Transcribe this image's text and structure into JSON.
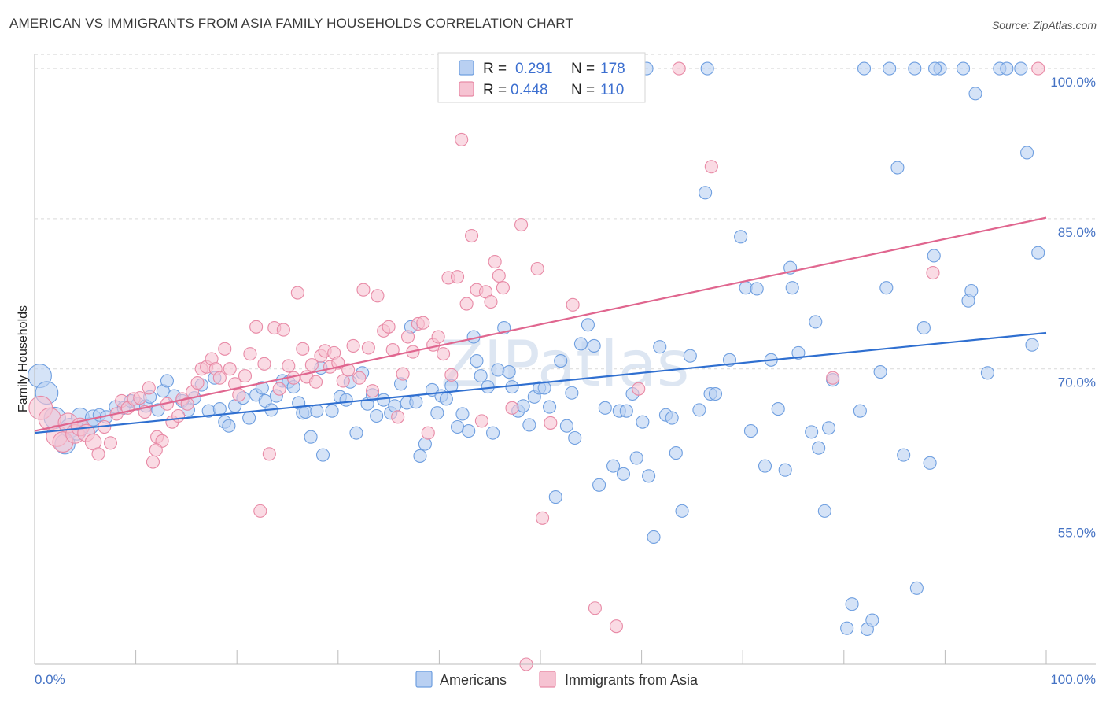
{
  "header": {
    "title": "AMERICAN VS IMMIGRANTS FROM ASIA FAMILY HOUSEHOLDS CORRELATION CHART",
    "source": "Source: ZipAtlas.com"
  },
  "legend": {
    "r_label": "R =",
    "n_label": "N =",
    "rows": [
      {
        "r": "0.291",
        "n": "178",
        "color": "#6f9fe0",
        "fill": "#b9d0f2"
      },
      {
        "r": "0.448",
        "n": "110",
        "color": "#e88aa6",
        "fill": "#f6c3d2"
      }
    ]
  },
  "bottom_legend": {
    "americans": "Americans",
    "immigrants": "Immigrants from Asia"
  },
  "watermark": "ZIPatlas",
  "chart_data": {
    "type": "scatter",
    "ylabel": "Family Households",
    "xlabel": "",
    "x_tick_labels": [
      "0.0%",
      "100.0%"
    ],
    "y_tick_labels": [
      "55.0%",
      "70.0%",
      "85.0%",
      "100.0%"
    ],
    "y_ticks": [
      55,
      70,
      85,
      100
    ],
    "xlim": [
      0,
      100
    ],
    "ylim": [
      40.5,
      101.5
    ],
    "grid": "horizontal dashed",
    "legend_position": "top-center",
    "series": [
      {
        "name": "Americans",
        "color": "#6f9fe0",
        "fill": "#b9d0f2",
        "trend": {
          "x": [
            0,
            100
          ],
          "y": [
            63.6,
            73.6
          ]
        },
        "points": [
          [
            0.5,
            69.3
          ],
          [
            1.2,
            67.6
          ],
          [
            2.0,
            65.1
          ],
          [
            3.0,
            62.5
          ],
          [
            3.5,
            64.1
          ],
          [
            4.2,
            63.8
          ],
          [
            4.5,
            65.2
          ],
          [
            5.5,
            64.3
          ],
          [
            5.8,
            65.1
          ],
          [
            6.4,
            65.4
          ],
          [
            7.1,
            65.2
          ],
          [
            8.0,
            66.2
          ],
          [
            8.8,
            66.1
          ],
          [
            9.5,
            66.8
          ],
          [
            10.2,
            66.5
          ],
          [
            11.0,
            66.3
          ],
          [
            11.4,
            67.2
          ],
          [
            12.2,
            65.9
          ],
          [
            12.7,
            67.8
          ],
          [
            13.1,
            68.8
          ],
          [
            13.8,
            67.3
          ],
          [
            14.6,
            66.8
          ],
          [
            15.2,
            65.9
          ],
          [
            15.8,
            67.1
          ],
          [
            16.5,
            68.4
          ],
          [
            17.2,
            65.8
          ],
          [
            17.8,
            69.1
          ],
          [
            18.3,
            66.0
          ],
          [
            18.8,
            64.7
          ],
          [
            19.2,
            64.3
          ],
          [
            19.8,
            66.3
          ],
          [
            20.6,
            67.1
          ],
          [
            21.2,
            65.1
          ],
          [
            21.9,
            67.4
          ],
          [
            22.5,
            68.1
          ],
          [
            22.8,
            66.8
          ],
          [
            23.4,
            65.9
          ],
          [
            23.9,
            67.3
          ],
          [
            24.5,
            68.8
          ],
          [
            25.1,
            68.7
          ],
          [
            25.6,
            68.2
          ],
          [
            26.1,
            66.6
          ],
          [
            26.5,
            65.6
          ],
          [
            26.8,
            65.7
          ],
          [
            27.3,
            63.2
          ],
          [
            27.9,
            65.8
          ],
          [
            28.3,
            70.1
          ],
          [
            28.5,
            61.4
          ],
          [
            29.4,
            65.8
          ],
          [
            30.2,
            67.2
          ],
          [
            30.8,
            66.9
          ],
          [
            31.2,
            68.7
          ],
          [
            31.8,
            63.6
          ],
          [
            32.4,
            69.6
          ],
          [
            32.9,
            66.5
          ],
          [
            33.4,
            67.4
          ],
          [
            33.8,
            65.3
          ],
          [
            34.5,
            66.9
          ],
          [
            35.2,
            65.6
          ],
          [
            35.6,
            66.3
          ],
          [
            36.2,
            68.5
          ],
          [
            36.8,
            66.6
          ],
          [
            37.2,
            74.2
          ],
          [
            37.7,
            66.7
          ],
          [
            38.1,
            61.3
          ],
          [
            38.6,
            62.5
          ],
          [
            39.3,
            67.9
          ],
          [
            39.8,
            65.6
          ],
          [
            40.2,
            67.3
          ],
          [
            40.7,
            67.0
          ],
          [
            41.2,
            68.3
          ],
          [
            41.8,
            64.2
          ],
          [
            42.3,
            65.5
          ],
          [
            42.9,
            63.8
          ],
          [
            43.4,
            73.2
          ],
          [
            43.7,
            70.8
          ],
          [
            44.1,
            69.3
          ],
          [
            44.8,
            68.2
          ],
          [
            45.3,
            63.6
          ],
          [
            45.8,
            69.9
          ],
          [
            46.4,
            74.1
          ],
          [
            46.9,
            69.7
          ],
          [
            47.2,
            68.2
          ],
          [
            47.8,
            65.8
          ],
          [
            48.3,
            66.3
          ],
          [
            48.9,
            64.4
          ],
          [
            49.4,
            67.2
          ],
          [
            49.9,
            68.1
          ],
          [
            50.4,
            68.1
          ],
          [
            50.9,
            66.2
          ],
          [
            51.5,
            57.2
          ],
          [
            52.0,
            70.8
          ],
          [
            52.6,
            64.3
          ],
          [
            53.1,
            67.6
          ],
          [
            53.4,
            63.1
          ],
          [
            54.0,
            72.5
          ],
          [
            54.7,
            74.4
          ],
          [
            55.3,
            72.3
          ],
          [
            55.8,
            58.4
          ],
          [
            56.4,
            66.1
          ],
          [
            57.2,
            60.3
          ],
          [
            57.8,
            65.8
          ],
          [
            58.2,
            59.5
          ],
          [
            58.5,
            65.8
          ],
          [
            59.1,
            67.5
          ],
          [
            59.5,
            61.1
          ],
          [
            60.1,
            64.7
          ],
          [
            60.7,
            59.3
          ],
          [
            61.2,
            53.2
          ],
          [
            61.8,
            72.2
          ],
          [
            62.4,
            65.4
          ],
          [
            63.0,
            65.1
          ],
          [
            63.4,
            61.6
          ],
          [
            64.0,
            55.8
          ],
          [
            64.8,
            71.3
          ],
          [
            65.7,
            65.9
          ],
          [
            66.3,
            87.6
          ],
          [
            66.8,
            67.5
          ],
          [
            67.3,
            67.5
          ],
          [
            68.7,
            70.9
          ],
          [
            69.8,
            83.2
          ],
          [
            70.3,
            78.1
          ],
          [
            70.8,
            63.8
          ],
          [
            71.4,
            78.0
          ],
          [
            72.2,
            60.3
          ],
          [
            72.8,
            70.9
          ],
          [
            73.5,
            66.0
          ],
          [
            74.2,
            59.9
          ],
          [
            74.7,
            80.1
          ],
          [
            74.9,
            78.1
          ],
          [
            75.5,
            71.6
          ],
          [
            76.8,
            63.7
          ],
          [
            77.2,
            74.7
          ],
          [
            77.5,
            62.1
          ],
          [
            78.1,
            55.8
          ],
          [
            78.5,
            64.1
          ],
          [
            78.9,
            68.9
          ],
          [
            80.3,
            44.1
          ],
          [
            80.8,
            46.5
          ],
          [
            81.6,
            65.8
          ],
          [
            82.3,
            44.0
          ],
          [
            82.8,
            44.9
          ],
          [
            83.6,
            69.7
          ],
          [
            84.2,
            78.1
          ],
          [
            85.3,
            90.1
          ],
          [
            85.9,
            61.4
          ],
          [
            87.2,
            48.1
          ],
          [
            87.9,
            74.1
          ],
          [
            88.5,
            60.6
          ],
          [
            88.9,
            81.3
          ],
          [
            89.5,
            100.0
          ],
          [
            91.8,
            100.0
          ],
          [
            92.3,
            76.8
          ],
          [
            92.6,
            77.8
          ],
          [
            93.0,
            97.5
          ],
          [
            94.2,
            69.6
          ],
          [
            95.4,
            100.0
          ],
          [
            96.1,
            100.0
          ],
          [
            97.5,
            100.0
          ],
          [
            98.1,
            91.6
          ],
          [
            98.6,
            72.4
          ],
          [
            99.2,
            81.6
          ],
          [
            82.0,
            100.0
          ],
          [
            84.5,
            100.0
          ],
          [
            87.0,
            100.0
          ],
          [
            89.0,
            100.0
          ],
          [
            66.5,
            100.0
          ],
          [
            60.5,
            100.0
          ]
        ]
      },
      {
        "name": "Immigrants from Asia",
        "color": "#e88aa6",
        "fill": "#f6c3d2",
        "trend": {
          "x": [
            0,
            100
          ],
          "y": [
            63.8,
            85.1
          ]
        },
        "points": [
          [
            0.6,
            66.1
          ],
          [
            1.5,
            65.0
          ],
          [
            2.2,
            63.3
          ],
          [
            2.8,
            62.7
          ],
          [
            3.3,
            64.6
          ],
          [
            4.0,
            63.5
          ],
          [
            4.5,
            64.2
          ],
          [
            5.1,
            63.6
          ],
          [
            5.8,
            62.7
          ],
          [
            6.3,
            61.5
          ],
          [
            6.9,
            64.2
          ],
          [
            7.5,
            62.6
          ],
          [
            8.1,
            65.5
          ],
          [
            8.6,
            66.8
          ],
          [
            9.2,
            66.1
          ],
          [
            9.8,
            67.0
          ],
          [
            10.4,
            67.1
          ],
          [
            10.9,
            65.7
          ],
          [
            11.3,
            68.1
          ],
          [
            11.7,
            60.7
          ],
          [
            12.1,
            63.2
          ],
          [
            12.6,
            62.8
          ],
          [
            13.1,
            66.5
          ],
          [
            13.6,
            64.7
          ],
          [
            14.2,
            65.3
          ],
          [
            14.6,
            67.0
          ],
          [
            15.1,
            66.5
          ],
          [
            15.6,
            67.7
          ],
          [
            16.1,
            68.6
          ],
          [
            16.5,
            70.0
          ],
          [
            17.0,
            70.2
          ],
          [
            17.5,
            71.0
          ],
          [
            17.9,
            70.0
          ],
          [
            18.3,
            69.1
          ],
          [
            18.8,
            72.0
          ],
          [
            19.3,
            70.0
          ],
          [
            19.8,
            68.5
          ],
          [
            20.2,
            67.4
          ],
          [
            20.8,
            69.3
          ],
          [
            21.3,
            71.5
          ],
          [
            21.9,
            74.2
          ],
          [
            22.3,
            55.8
          ],
          [
            22.7,
            70.5
          ],
          [
            23.2,
            61.5
          ],
          [
            23.7,
            74.1
          ],
          [
            24.2,
            68.0
          ],
          [
            24.6,
            73.9
          ],
          [
            25.1,
            70.3
          ],
          [
            25.6,
            69.1
          ],
          [
            26.0,
            77.6
          ],
          [
            26.5,
            72.0
          ],
          [
            26.9,
            69.2
          ],
          [
            27.4,
            70.4
          ],
          [
            27.8,
            68.7
          ],
          [
            28.3,
            71.3
          ],
          [
            28.7,
            71.8
          ],
          [
            29.2,
            70.2
          ],
          [
            29.6,
            71.6
          ],
          [
            30.0,
            70.6
          ],
          [
            30.5,
            68.8
          ],
          [
            31.0,
            69.9
          ],
          [
            31.5,
            72.3
          ],
          [
            32.1,
            69.1
          ],
          [
            32.5,
            77.9
          ],
          [
            33.0,
            72.1
          ],
          [
            33.4,
            67.8
          ],
          [
            33.9,
            77.3
          ],
          [
            34.5,
            73.8
          ],
          [
            35.0,
            74.2
          ],
          [
            35.4,
            71.9
          ],
          [
            35.9,
            65.2
          ],
          [
            36.4,
            69.5
          ],
          [
            36.9,
            73.2
          ],
          [
            37.4,
            71.7
          ],
          [
            37.9,
            74.5
          ],
          [
            38.4,
            74.6
          ],
          [
            38.9,
            63.6
          ],
          [
            39.4,
            72.4
          ],
          [
            39.9,
            73.2
          ],
          [
            40.4,
            71.5
          ],
          [
            40.9,
            79.1
          ],
          [
            41.2,
            69.4
          ],
          [
            41.8,
            79.2
          ],
          [
            42.2,
            92.9
          ],
          [
            42.7,
            76.5
          ],
          [
            43.2,
            83.3
          ],
          [
            43.7,
            77.9
          ],
          [
            44.2,
            64.8
          ],
          [
            44.6,
            77.7
          ],
          [
            45.1,
            76.7
          ],
          [
            45.5,
            80.7
          ],
          [
            45.9,
            79.3
          ],
          [
            46.3,
            78.1
          ],
          [
            47.2,
            66.1
          ],
          [
            48.1,
            84.4
          ],
          [
            48.6,
            40.5
          ],
          [
            49.7,
            80.0
          ],
          [
            50.2,
            55.1
          ],
          [
            51.0,
            64.6
          ],
          [
            53.2,
            76.4
          ],
          [
            55.4,
            46.1
          ],
          [
            57.5,
            44.3
          ],
          [
            59.7,
            68.0
          ],
          [
            63.7,
            100.0
          ],
          [
            66.9,
            90.2
          ],
          [
            78.9,
            69.1
          ],
          [
            88.8,
            79.6
          ],
          [
            99.2,
            100.0
          ],
          [
            12.0,
            61.9
          ]
        ]
      }
    ]
  }
}
